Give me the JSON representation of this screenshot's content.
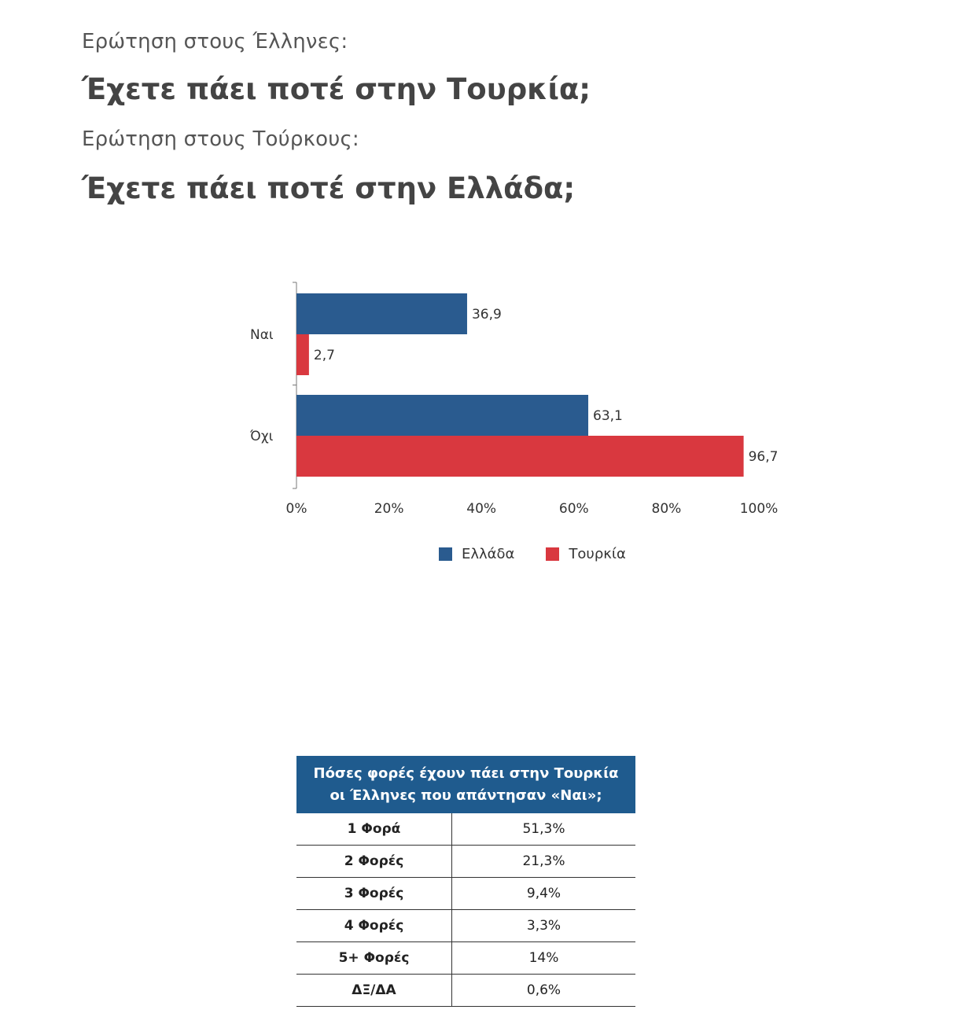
{
  "header": {
    "q1_label": "Ερώτηση στους Έλληνες:",
    "q1_main": "Έχετε πάει ποτέ στην Τουρκία;",
    "q2_label": "Ερώτηση στους Τούρκους:",
    "q2_main": "Έχετε πάει ποτέ στην Ελλάδα;"
  },
  "chart_data": {
    "type": "bar",
    "orientation": "horizontal",
    "categories": [
      "Ναι",
      "Όχι"
    ],
    "series": [
      {
        "name": "Ελλάδα",
        "values": [
          36.9,
          63.1
        ],
        "labels": [
          "36,9",
          "63,1"
        ],
        "color": "#2a5b8f"
      },
      {
        "name": "Τουρκία",
        "values": [
          2.7,
          96.7
        ],
        "labels": [
          "2,7",
          "96,7"
        ],
        "color": "#d9383f"
      }
    ],
    "xlim": [
      0,
      100
    ],
    "xticks": [
      "0%",
      "20%",
      "40%",
      "60%",
      "80%",
      "100%"
    ],
    "grid": false,
    "legend_position": "bottom"
  },
  "table": {
    "header_line1": "Πόσες φορές έχουν πάει στην Τουρκία",
    "header_line2": "οι Έλληνες που απάντησαν «Ναι»;",
    "header_color": "#1f5b8e",
    "rows": [
      {
        "label": "1 Φορά",
        "value": "51,3%"
      },
      {
        "label": "2 Φορές",
        "value": "21,3%"
      },
      {
        "label": "3 Φορές",
        "value": "9,4%"
      },
      {
        "label": "4 Φορές",
        "value": "3,3%"
      },
      {
        "label": "5+ Φορές",
        "value": "14%"
      },
      {
        "label": "ΔΞ/ΔΑ",
        "value": "0,6%"
      }
    ]
  }
}
